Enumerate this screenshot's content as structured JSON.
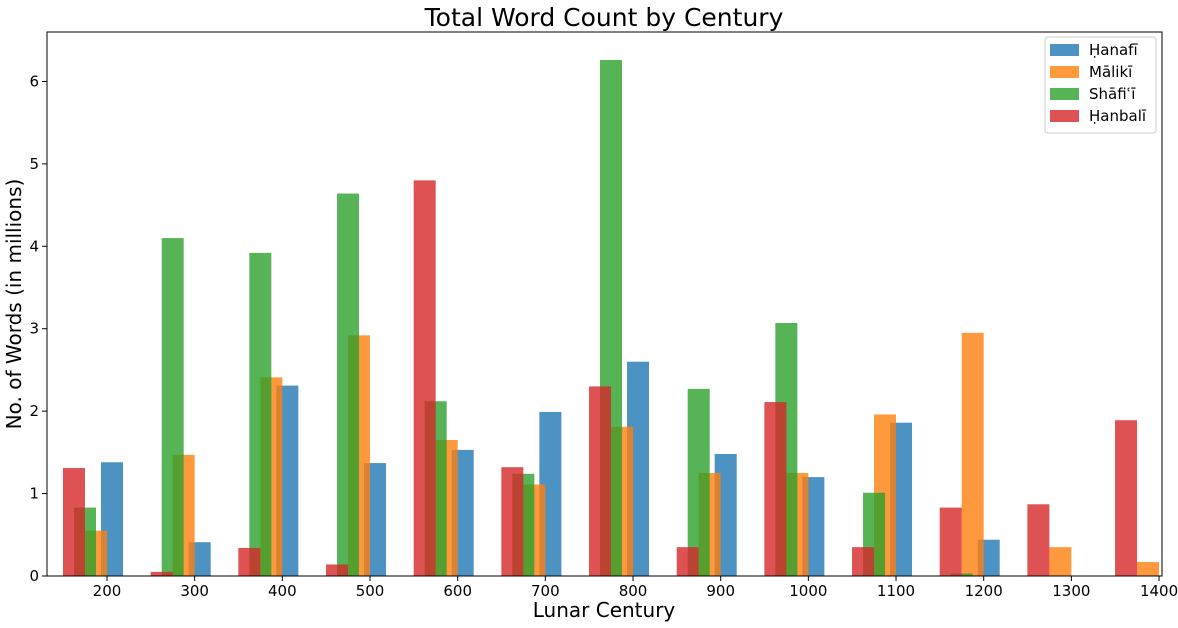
{
  "chart_data": {
    "type": "bar",
    "title": "Total Word Count by Century",
    "xlabel": "Lunar Century",
    "ylabel": "No. of Words (in millions)",
    "ylim": [
      0,
      6.6
    ],
    "yticks": [
      "0",
      "1",
      "2",
      "3",
      "4",
      "5",
      "6"
    ],
    "grid": false,
    "legend_position": "top-right",
    "x_groups": [
      {
        "label": "200",
        "tick": "200"
      },
      {
        "label": "300",
        "tick": "300"
      },
      {
        "label": "400",
        "tick": "400"
      },
      {
        "label": "500",
        "tick": "500"
      },
      {
        "label": "600",
        "tick": "600"
      },
      {
        "label": "700",
        "tick": "700"
      },
      {
        "label": "800",
        "tick": "800"
      },
      {
        "label": "900",
        "tick": "900"
      },
      {
        "label": "1000",
        "tick": "1000"
      },
      {
        "label": "1100",
        "tick": "1100"
      },
      {
        "label": "1200",
        "tick": "1200"
      },
      {
        "label": "1300",
        "tick": "1300"
      },
      {
        "label": "1400",
        "tick": "1400"
      }
    ],
    "series": [
      {
        "name": "Ḥanafī",
        "color": "#1f77b4",
        "values": [
          1.38,
          0.41,
          2.31,
          1.37,
          1.53,
          1.99,
          2.6,
          1.48,
          1.2,
          1.86,
          0.44,
          0,
          0
        ]
      },
      {
        "name": "Mālikī",
        "color": "#ff7f0e",
        "values": [
          0.55,
          1.47,
          2.41,
          2.92,
          1.65,
          1.11,
          1.81,
          1.25,
          1.25,
          1.96,
          2.95,
          0.35,
          0.17
        ]
      },
      {
        "name": "Shāfiʿī",
        "color": "#2ca02c",
        "values": [
          0.83,
          4.1,
          3.92,
          4.64,
          2.12,
          1.24,
          6.26,
          2.27,
          3.07,
          1.01,
          0.03,
          0,
          0
        ]
      },
      {
        "name": "Ḥanbalī",
        "color": "#d62728",
        "values": [
          1.31,
          0.05,
          0.34,
          0.14,
          4.8,
          1.32,
          2.3,
          0.35,
          2.11,
          0.35,
          0.83,
          0.87,
          1.89
        ]
      }
    ]
  }
}
